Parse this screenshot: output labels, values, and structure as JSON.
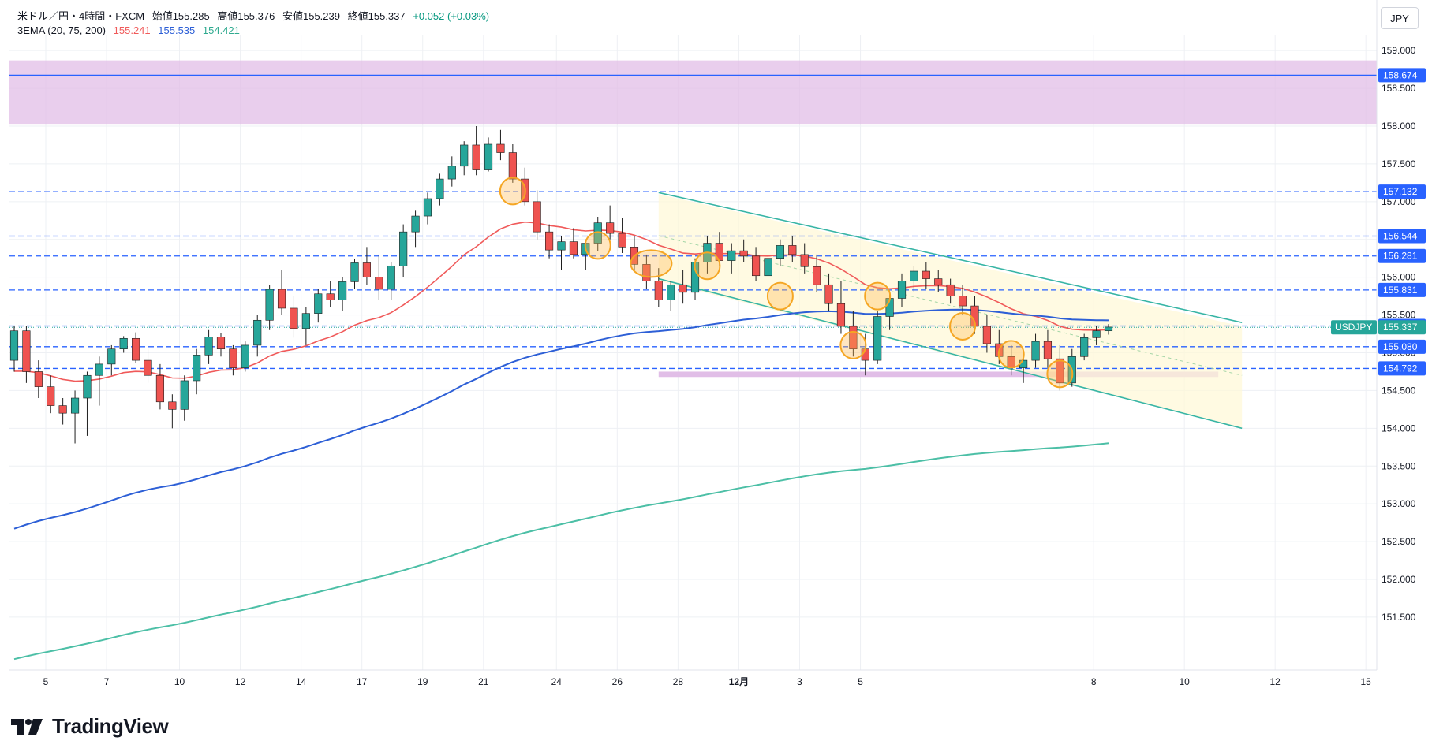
{
  "header": {
    "symbol_line": "米ドル／円・4時間・FXCM",
    "open_label": "始値",
    "open_value": "155.285",
    "high_label": "高値",
    "high_value": "155.376",
    "low_label": "安値",
    "low_value": "155.239",
    "close_label": "終値",
    "close_value": "155.337",
    "change": "+0.052 (+0.03%)",
    "ema_label": "3EMA (20, 75, 200)",
    "ema20_value": "155.241",
    "ema75_value": "155.535",
    "ema200_value": "154.421"
  },
  "currency_button": "JPY",
  "branding": {
    "logo_text": "TradingView"
  },
  "colors": {
    "up": "#26a69a",
    "down": "#ef5350",
    "ema20": "#f05a5a",
    "ema75": "#2d5fd6",
    "ema200": "#4cbfa6",
    "hline": "#2962ff",
    "zone": "#e1bee7",
    "channel": "#38b5a5"
  },
  "chart_data": {
    "type": "candlestick",
    "price_axis": {
      "min": 150.8,
      "max": 159.2,
      "ticks": [
        "151.500",
        "152.000",
        "152.500",
        "153.000",
        "153.500",
        "154.000",
        "154.500",
        "155.000",
        "155.500",
        "156.000",
        "156.500",
        "157.000",
        "157.500",
        "158.000",
        "158.500",
        "159.000"
      ]
    },
    "x_axis_labels": [
      "5",
      "7",
      "10",
      "12",
      "14",
      "17",
      "19",
      "21",
      "24",
      "26",
      "28",
      "12月",
      "3",
      "5",
      "8",
      "10",
      "12",
      "15"
    ],
    "horizontal_levels": [
      "158.674",
      "157.132",
      "156.544",
      "156.281",
      "155.831",
      "155.355",
      "155.080",
      "154.792"
    ],
    "current_price": {
      "symbol": "USDJPY",
      "value": "155.337"
    },
    "resistance_zone": {
      "from": 158.03,
      "to": 158.87
    },
    "candles": [
      [
        154.9,
        155.35,
        154.75,
        155.29
      ],
      [
        155.29,
        155.35,
        154.6,
        154.75
      ],
      [
        154.75,
        154.9,
        154.4,
        154.55
      ],
      [
        154.55,
        154.7,
        154.2,
        154.3
      ],
      [
        154.3,
        154.4,
        154.05,
        154.2
      ],
      [
        154.2,
        154.5,
        153.8,
        154.4
      ],
      [
        154.4,
        154.75,
        153.9,
        154.7
      ],
      [
        154.7,
        154.95,
        154.3,
        154.85
      ],
      [
        154.85,
        155.1,
        154.7,
        155.05
      ],
      [
        155.05,
        155.22,
        155.0,
        155.19
      ],
      [
        155.19,
        155.27,
        154.86,
        154.9
      ],
      [
        154.9,
        155.05,
        154.6,
        154.7
      ],
      [
        154.7,
        154.85,
        154.25,
        154.35
      ],
      [
        154.35,
        154.45,
        154.0,
        154.25
      ],
      [
        154.25,
        154.7,
        154.1,
        154.63
      ],
      [
        154.63,
        155.05,
        154.45,
        154.97
      ],
      [
        154.97,
        155.3,
        154.85,
        155.21
      ],
      [
        155.21,
        155.26,
        154.95,
        155.05
      ],
      [
        155.05,
        155.1,
        154.7,
        154.8
      ],
      [
        154.8,
        155.15,
        154.75,
        155.1
      ],
      [
        155.1,
        155.5,
        154.95,
        155.43
      ],
      [
        155.43,
        155.9,
        155.3,
        155.84
      ],
      [
        155.84,
        156.1,
        155.5,
        155.59
      ],
      [
        155.59,
        155.75,
        155.2,
        155.32
      ],
      [
        155.32,
        155.6,
        155.1,
        155.52
      ],
      [
        155.52,
        155.85,
        155.4,
        155.78
      ],
      [
        155.78,
        155.95,
        155.6,
        155.7
      ],
      [
        155.7,
        156.0,
        155.55,
        155.94
      ],
      [
        155.94,
        156.24,
        155.85,
        156.19
      ],
      [
        156.19,
        156.4,
        155.9,
        156.0
      ],
      [
        156.0,
        156.3,
        155.7,
        155.84
      ],
      [
        155.84,
        156.2,
        155.7,
        156.15
      ],
      [
        156.15,
        156.7,
        156.0,
        156.6
      ],
      [
        156.6,
        156.88,
        156.4,
        156.81
      ],
      [
        156.81,
        157.12,
        156.7,
        157.04
      ],
      [
        157.04,
        157.37,
        156.95,
        157.3
      ],
      [
        157.3,
        157.6,
        157.2,
        157.47
      ],
      [
        157.47,
        157.8,
        157.35,
        157.75
      ],
      [
        157.75,
        158.0,
        157.35,
        157.42
      ],
      [
        157.42,
        157.85,
        157.4,
        157.76
      ],
      [
        157.76,
        157.95,
        157.55,
        157.65
      ],
      [
        157.65,
        157.76,
        157.25,
        157.3
      ],
      [
        157.3,
        157.45,
        156.95,
        157.0
      ],
      [
        157.0,
        157.15,
        156.5,
        156.6
      ],
      [
        156.6,
        156.7,
        156.25,
        156.36
      ],
      [
        156.36,
        156.55,
        156.1,
        156.47
      ],
      [
        156.47,
        156.65,
        156.25,
        156.3
      ],
      [
        156.3,
        156.5,
        156.1,
        156.45
      ],
      [
        156.45,
        156.8,
        156.35,
        156.72
      ],
      [
        156.72,
        156.95,
        156.5,
        156.58
      ],
      [
        156.58,
        156.78,
        156.32,
        156.4
      ],
      [
        156.4,
        156.55,
        156.08,
        156.17
      ],
      [
        156.17,
        156.3,
        155.85,
        155.95
      ],
      [
        155.95,
        156.12,
        155.6,
        155.7
      ],
      [
        155.7,
        155.95,
        155.55,
        155.9
      ],
      [
        155.9,
        156.1,
        155.65,
        155.8
      ],
      [
        155.8,
        156.25,
        155.7,
        156.2
      ],
      [
        156.2,
        156.55,
        156.05,
        156.45
      ],
      [
        156.45,
        156.6,
        156.15,
        156.22
      ],
      [
        156.22,
        156.45,
        156.05,
        156.35
      ],
      [
        156.35,
        156.5,
        156.2,
        156.28
      ],
      [
        156.28,
        156.4,
        155.95,
        156.02
      ],
      [
        156.02,
        156.3,
        155.8,
        156.25
      ],
      [
        156.25,
        156.5,
        156.15,
        156.42
      ],
      [
        156.42,
        156.55,
        156.2,
        156.3
      ],
      [
        156.3,
        156.45,
        156.05,
        156.14
      ],
      [
        156.14,
        156.3,
        155.8,
        155.9
      ],
      [
        155.9,
        156.05,
        155.55,
        155.65
      ],
      [
        155.65,
        155.95,
        155.25,
        155.35
      ],
      [
        155.35,
        155.55,
        154.95,
        155.05
      ],
      [
        155.05,
        155.25,
        154.7,
        154.9
      ],
      [
        154.9,
        155.55,
        154.85,
        155.48
      ],
      [
        155.48,
        155.8,
        155.3,
        155.72
      ],
      [
        155.72,
        156.05,
        155.6,
        155.95
      ],
      [
        155.95,
        156.15,
        155.8,
        156.08
      ],
      [
        156.08,
        156.2,
        155.85,
        155.98
      ],
      [
        155.98,
        156.1,
        155.8,
        155.9
      ],
      [
        155.9,
        155.98,
        155.65,
        155.75
      ],
      [
        155.75,
        155.9,
        155.5,
        155.62
      ],
      [
        155.62,
        155.75,
        155.25,
        155.35
      ],
      [
        155.35,
        155.5,
        155.0,
        155.12
      ],
      [
        155.12,
        155.3,
        154.85,
        154.95
      ],
      [
        154.95,
        155.1,
        154.7,
        154.8
      ],
      [
        154.8,
        155.0,
        154.6,
        154.9
      ],
      [
        154.9,
        155.25,
        154.8,
        155.15
      ],
      [
        155.15,
        155.3,
        154.8,
        154.92
      ],
      [
        154.92,
        155.1,
        154.5,
        154.6
      ],
      [
        154.6,
        155.05,
        154.55,
        154.95
      ],
      [
        154.95,
        155.25,
        154.9,
        155.2
      ],
      [
        155.2,
        155.35,
        155.1,
        155.29
      ],
      [
        155.29,
        155.38,
        155.24,
        155.34
      ]
    ]
  }
}
